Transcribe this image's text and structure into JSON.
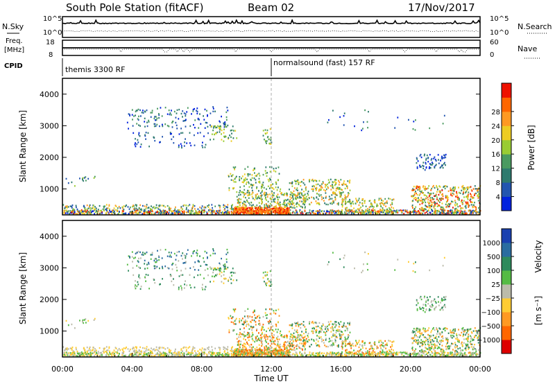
{
  "header": {
    "station_title": "South Pole Station (fitACF)",
    "beam": "Beam 02",
    "date": "17/Nov/2017"
  },
  "top_panels": {
    "nsky_label": "N.Sky",
    "nsearch_label": "N.Search",
    "freq_label_line1": "Freq.",
    "freq_label_line2": "[MHz]",
    "nave_label": "Nave",
    "cpid_label": "CPID",
    "nsky_ticks": [
      "10^5",
      "10^0"
    ],
    "nsearch_ticks": [
      "10^5",
      "10^0"
    ],
    "freq_ticks": [
      "18",
      "8"
    ],
    "nave_ticks": [
      "60",
      "0"
    ],
    "cpid_segments": [
      {
        "label": "themis 3300 RF",
        "start_hour": 0
      },
      {
        "label": "normalsound (fast) 157 RF",
        "start_hour": 12
      }
    ]
  },
  "chart_data": [
    {
      "type": "heatmap",
      "panel": "power",
      "ylabel": "Slant Range [km]",
      "yticks": [
        1000,
        2000,
        3000,
        4000
      ],
      "ylim": [
        180,
        4500
      ],
      "xlim": [
        0,
        24
      ],
      "colorbar_label": "Power [dB]",
      "colorbar_ticks": [
        "4",
        "8",
        "12",
        "16",
        "20",
        "24",
        "28"
      ],
      "colorbar_range": [
        0,
        30
      ]
    },
    {
      "type": "heatmap",
      "panel": "velocity",
      "ylabel": "Slant Range [km]",
      "yticks": [
        1000,
        2000,
        3000,
        4000
      ],
      "ylim": [
        180,
        4500
      ],
      "xlim": [
        0,
        24
      ],
      "xlabel": "Time UT",
      "xticks": [
        "00:00",
        "04:00",
        "08:00",
        "12:00",
        "16:00",
        "20:00",
        "00:00"
      ],
      "colorbar_label_main": "Velocity",
      "colorbar_label_unit": "[m s⁻¹]",
      "colorbar_ticks": [
        "1000",
        "500",
        "100",
        "25",
        "−25",
        "−100",
        "−500",
        "−1000"
      ]
    }
  ],
  "colors": {
    "power_scale": [
      "#0022dd",
      "#2255b0",
      "#2e7a6e",
      "#4a9a60",
      "#99cc33",
      "#eecc22",
      "#ff9922",
      "#ff6600",
      "#ee1100"
    ],
    "velocity_scale": [
      "#1a40b0",
      "#2a6ca0",
      "#2e8a5c",
      "#55bb44",
      "#bbbbaa",
      "#ffcc33",
      "#ff9922",
      "#ff6600",
      "#dd0000"
    ]
  }
}
